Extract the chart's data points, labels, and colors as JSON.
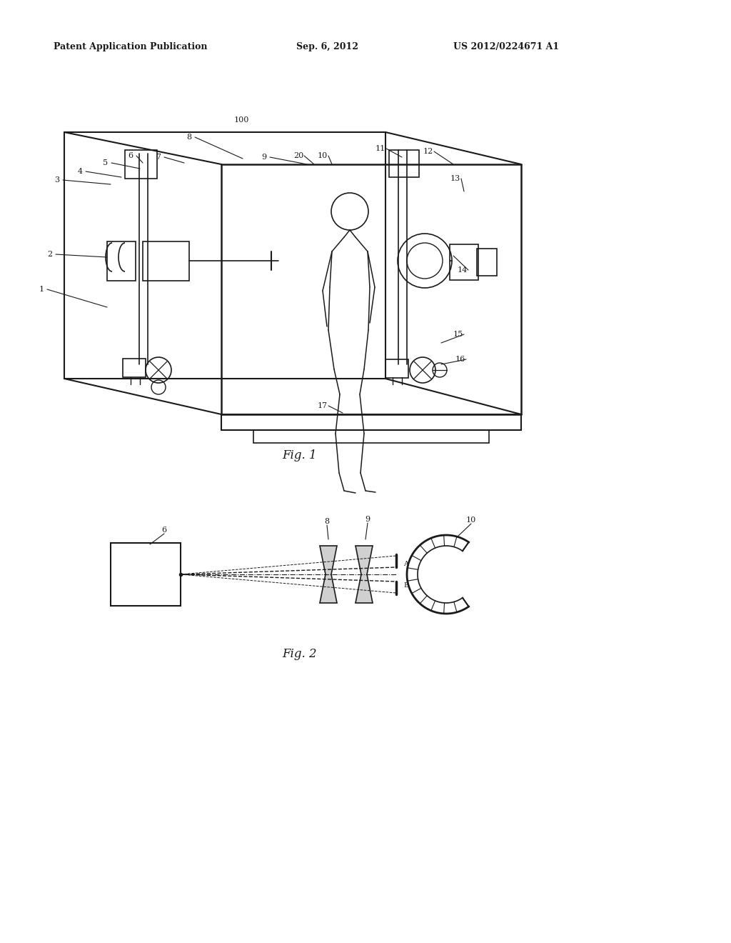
{
  "bg_color": "#ffffff",
  "line_color": "#1a1a1a",
  "header_left": "Patent Application Publication",
  "header_center": "Sep. 6, 2012",
  "header_right": "US 2012/0224671 A1",
  "fig1_label": "Fig. 1",
  "fig2_label": "Fig. 2"
}
